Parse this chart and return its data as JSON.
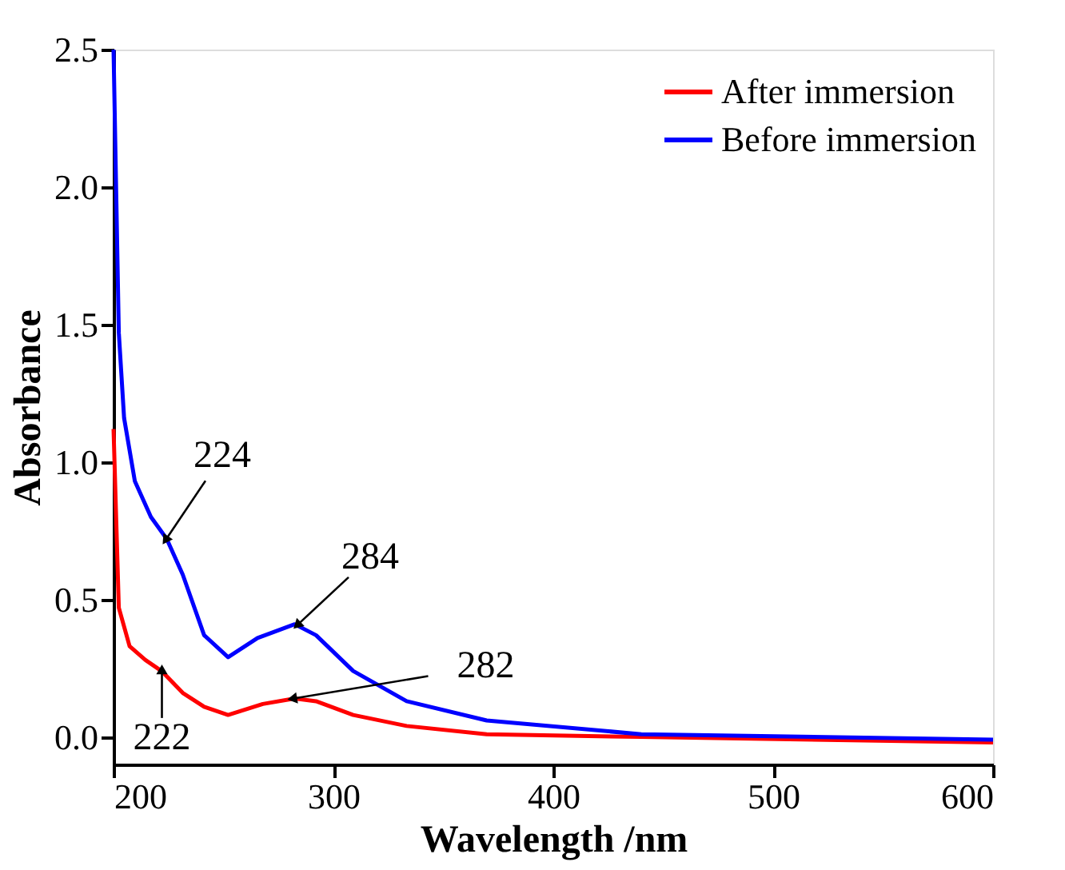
{
  "chart_data": {
    "type": "line",
    "xlabel": "Wavelength /nm",
    "ylabel": "Absorbance",
    "xlim": [
      200,
      600
    ],
    "ylim": [
      -0.1,
      2.5
    ],
    "xticks": [
      200,
      300,
      400,
      500,
      600
    ],
    "yticks": [
      {
        "value": 0,
        "label": "0.0"
      },
      {
        "value": 0.5,
        "label": "0.5"
      },
      {
        "value": 1,
        "label": "1.0"
      },
      {
        "value": 1.5,
        "label": "1.5"
      },
      {
        "value": 2,
        "label": "2.0"
      },
      {
        "value": 2.5,
        "label": "2.5"
      }
    ],
    "grid": false,
    "legend": "top right",
    "marker": "none",
    "line_style": "solid",
    "series": [
      {
        "name": "After immersion",
        "color": "#ff0000",
        "x": [
          200,
          202.4,
          207.3,
          214.5,
          221.8,
          231.5,
          241.2,
          252.1,
          267.9,
          282.4,
          292.1,
          309,
          333.3,
          369.7,
          440,
          600
        ],
        "values": [
          1.12,
          0.47,
          0.33,
          0.28,
          0.24,
          0.16,
          0.11,
          0.08,
          0.12,
          0.14,
          0.13,
          0.08,
          0.04,
          0.01,
          0.0,
          -0.02
        ]
      },
      {
        "name": "Before immersion",
        "color": "#0000ff",
        "x": [
          200,
          202.4,
          204.8,
          209.7,
          217,
          224.2,
          231.5,
          241.2,
          252.1,
          265.5,
          282.4,
          292.1,
          309,
          333.3,
          369.7,
          440,
          600
        ],
        "values": [
          2.5,
          1.47,
          1.16,
          0.93,
          0.8,
          0.72,
          0.59,
          0.37,
          0.29,
          0.36,
          0.41,
          0.37,
          0.24,
          0.13,
          0.06,
          0.01,
          -0.01
        ]
      }
    ],
    "annotations": [
      {
        "text": "224",
        "x": 224,
        "y": 0.72
      },
      {
        "text": "284",
        "x": 284,
        "y": 0.41
      },
      {
        "text": "282",
        "x": 282,
        "y": 0.14
      },
      {
        "text": "222",
        "x": 222,
        "y": 0.24
      }
    ]
  }
}
